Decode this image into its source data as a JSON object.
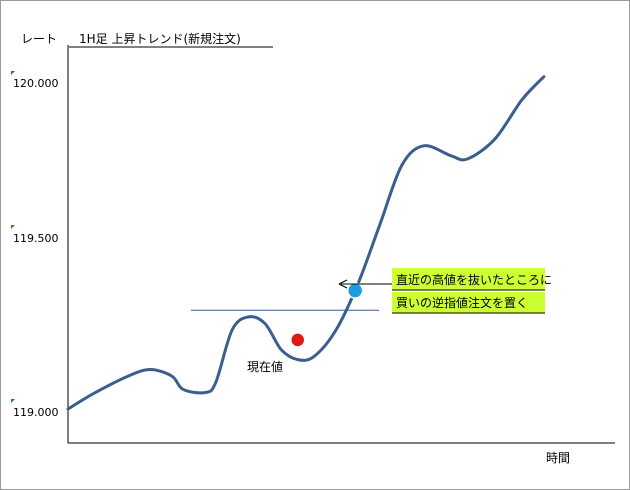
{
  "chart_data": {
    "type": "line",
    "title": "1H足 上昇トレンド(新規注文)",
    "ylabel": "レート",
    "xlabel": "時間",
    "ylim": [
      119.0,
      120.0
    ],
    "yticks": [
      "120.000",
      "119.500",
      "119.000"
    ],
    "ytick_values": [
      120.0,
      119.5,
      119.0
    ],
    "grid": false,
    "series": [
      {
        "name": "",
        "color": "#3a5f8f",
        "points": [
          [
            0,
            119.0
          ],
          [
            0.05,
            119.05
          ],
          [
            0.11,
            119.1
          ],
          [
            0.15,
            119.12
          ],
          [
            0.19,
            119.1
          ],
          [
            0.21,
            119.06
          ],
          [
            0.25,
            119.05
          ],
          [
            0.27,
            119.08
          ],
          [
            0.3,
            119.24
          ],
          [
            0.33,
            119.28
          ],
          [
            0.36,
            119.26
          ],
          [
            0.39,
            119.18
          ],
          [
            0.42,
            119.15
          ],
          [
            0.45,
            119.16
          ],
          [
            0.49,
            119.24
          ],
          [
            0.53,
            119.38
          ],
          [
            0.57,
            119.56
          ],
          [
            0.61,
            119.74
          ],
          [
            0.65,
            119.8
          ],
          [
            0.7,
            119.77
          ],
          [
            0.73,
            119.76
          ],
          [
            0.78,
            119.82
          ],
          [
            0.83,
            119.94
          ],
          [
            0.87,
            120.01
          ]
        ]
      }
    ],
    "resistance_level": 119.3,
    "markers": [
      {
        "name": "現在値",
        "x": 0.42,
        "y": 119.21,
        "color": "#e01818"
      },
      {
        "name": "entry",
        "x": 0.525,
        "y": 119.36,
        "color": "#1e9be0"
      }
    ],
    "annotations": {
      "current_price_label": "現在値",
      "callout_line1": "直近の高値を抜いたところに",
      "callout_line2": "買いの逆指値注文を置く",
      "callout_bg": "#ccff33"
    }
  }
}
